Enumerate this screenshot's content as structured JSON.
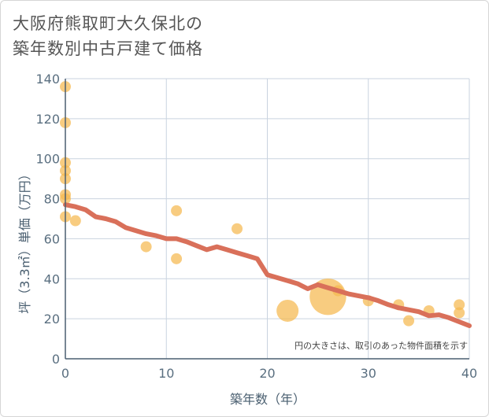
{
  "chart_data": {
    "type": "scatter",
    "title_lines": [
      "大阪府熊取町大久保北の",
      "築年数別中古戸建て価格"
    ],
    "xlabel": "築年数（年）",
    "ylabel": "坪（3.3㎡）単価（万円）",
    "xlim": [
      0,
      40
    ],
    "ylim": [
      0,
      140
    ],
    "x_ticks": [
      0,
      10,
      20,
      30,
      40
    ],
    "y_ticks": [
      0,
      20,
      40,
      60,
      80,
      100,
      120,
      140
    ],
    "note": "円の大きさは、取引のあった物件面積を示す",
    "colors": {
      "bubble": "#f5b94f",
      "trend": "#d9705a",
      "grid": "#c9d3df"
    },
    "points": [
      {
        "x": 0,
        "y": 136,
        "size": 1
      },
      {
        "x": 0,
        "y": 118,
        "size": 1
      },
      {
        "x": 0,
        "y": 98,
        "size": 1
      },
      {
        "x": 0,
        "y": 94,
        "size": 1
      },
      {
        "x": 0,
        "y": 90,
        "size": 1
      },
      {
        "x": 0,
        "y": 82,
        "size": 1
      },
      {
        "x": 0,
        "y": 80,
        "size": 1
      },
      {
        "x": 0,
        "y": 71,
        "size": 1
      },
      {
        "x": 1,
        "y": 69,
        "size": 1
      },
      {
        "x": 8,
        "y": 56,
        "size": 1
      },
      {
        "x": 11,
        "y": 74,
        "size": 1
      },
      {
        "x": 11,
        "y": 50,
        "size": 1
      },
      {
        "x": 17,
        "y": 65,
        "size": 1
      },
      {
        "x": 22,
        "y": 24,
        "size": 4
      },
      {
        "x": 26,
        "y": 31,
        "size": 11
      },
      {
        "x": 27,
        "y": 34,
        "size": 1
      },
      {
        "x": 30,
        "y": 29,
        "size": 1
      },
      {
        "x": 33,
        "y": 27,
        "size": 1
      },
      {
        "x": 34,
        "y": 19,
        "size": 1
      },
      {
        "x": 36,
        "y": 24,
        "size": 1
      },
      {
        "x": 39,
        "y": 27,
        "size": 1
      },
      {
        "x": 39,
        "y": 23,
        "size": 1
      }
    ],
    "trend": {
      "x": [
        0,
        1,
        2,
        3,
        4,
        5,
        6,
        7,
        8,
        9,
        10,
        11,
        12,
        13,
        14,
        15,
        16,
        17,
        18,
        19,
        20,
        21,
        22,
        23,
        24,
        25,
        26,
        27,
        28,
        29,
        30,
        31,
        32,
        33,
        34,
        35,
        36,
        37,
        38,
        39,
        40
      ],
      "y": [
        77,
        76,
        74.5,
        71,
        70,
        68.5,
        65.5,
        64,
        62.5,
        61.5,
        60,
        60,
        58.5,
        56.5,
        54.5,
        56,
        54.5,
        53,
        51.5,
        50,
        42,
        40.5,
        39,
        37.5,
        35,
        37,
        35.5,
        34,
        32.5,
        31.5,
        30.5,
        29,
        27,
        25.5,
        24.5,
        23.5,
        21.5,
        22,
        20.5,
        18.5,
        16.5
      ]
    }
  }
}
